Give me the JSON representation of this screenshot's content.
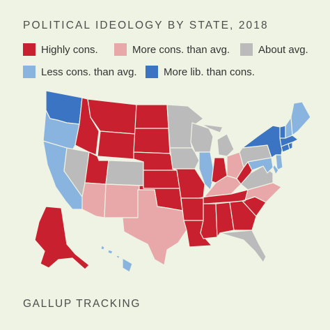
{
  "title": "POLITICAL IDEOLOGY BY STATE, 2018",
  "footer": "GALLUP TRACKING",
  "colors": {
    "highly": "#c8202f",
    "more": "#e8a8aa",
    "about": "#bbbbbb",
    "less": "#8ab4e0",
    "lib": "#3a74c3"
  },
  "legend": [
    {
      "key": "highly",
      "label": "Highly cons."
    },
    {
      "key": "more",
      "label": "More cons. than avg."
    },
    {
      "key": "about",
      "label": "About avg."
    },
    {
      "key": "less",
      "label": "Less cons. than avg."
    },
    {
      "key": "lib",
      "label": "More lib. than cons."
    }
  ],
  "states": {
    "highly": [
      "ID",
      "MT",
      "ND",
      "SD",
      "WY",
      "NE",
      "UT",
      "KS",
      "OK",
      "MO",
      "AR",
      "LA",
      "MS",
      "AL",
      "TN",
      "GA",
      "SC",
      "IN",
      "WV",
      "AK"
    ],
    "more": [
      "AZ",
      "NM",
      "TX",
      "NC",
      "KY",
      "OH"
    ],
    "about": [
      "NV",
      "CO",
      "MN",
      "IA",
      "WI",
      "MI",
      "FL",
      "VA",
      "PA"
    ],
    "less": [
      "OR",
      "CA",
      "IL",
      "ME",
      "NH",
      "NJ",
      "DE",
      "MD",
      "HI"
    ],
    "lib": [
      "WA",
      "NY",
      "VT",
      "MA",
      "CT",
      "RI"
    ]
  }
}
